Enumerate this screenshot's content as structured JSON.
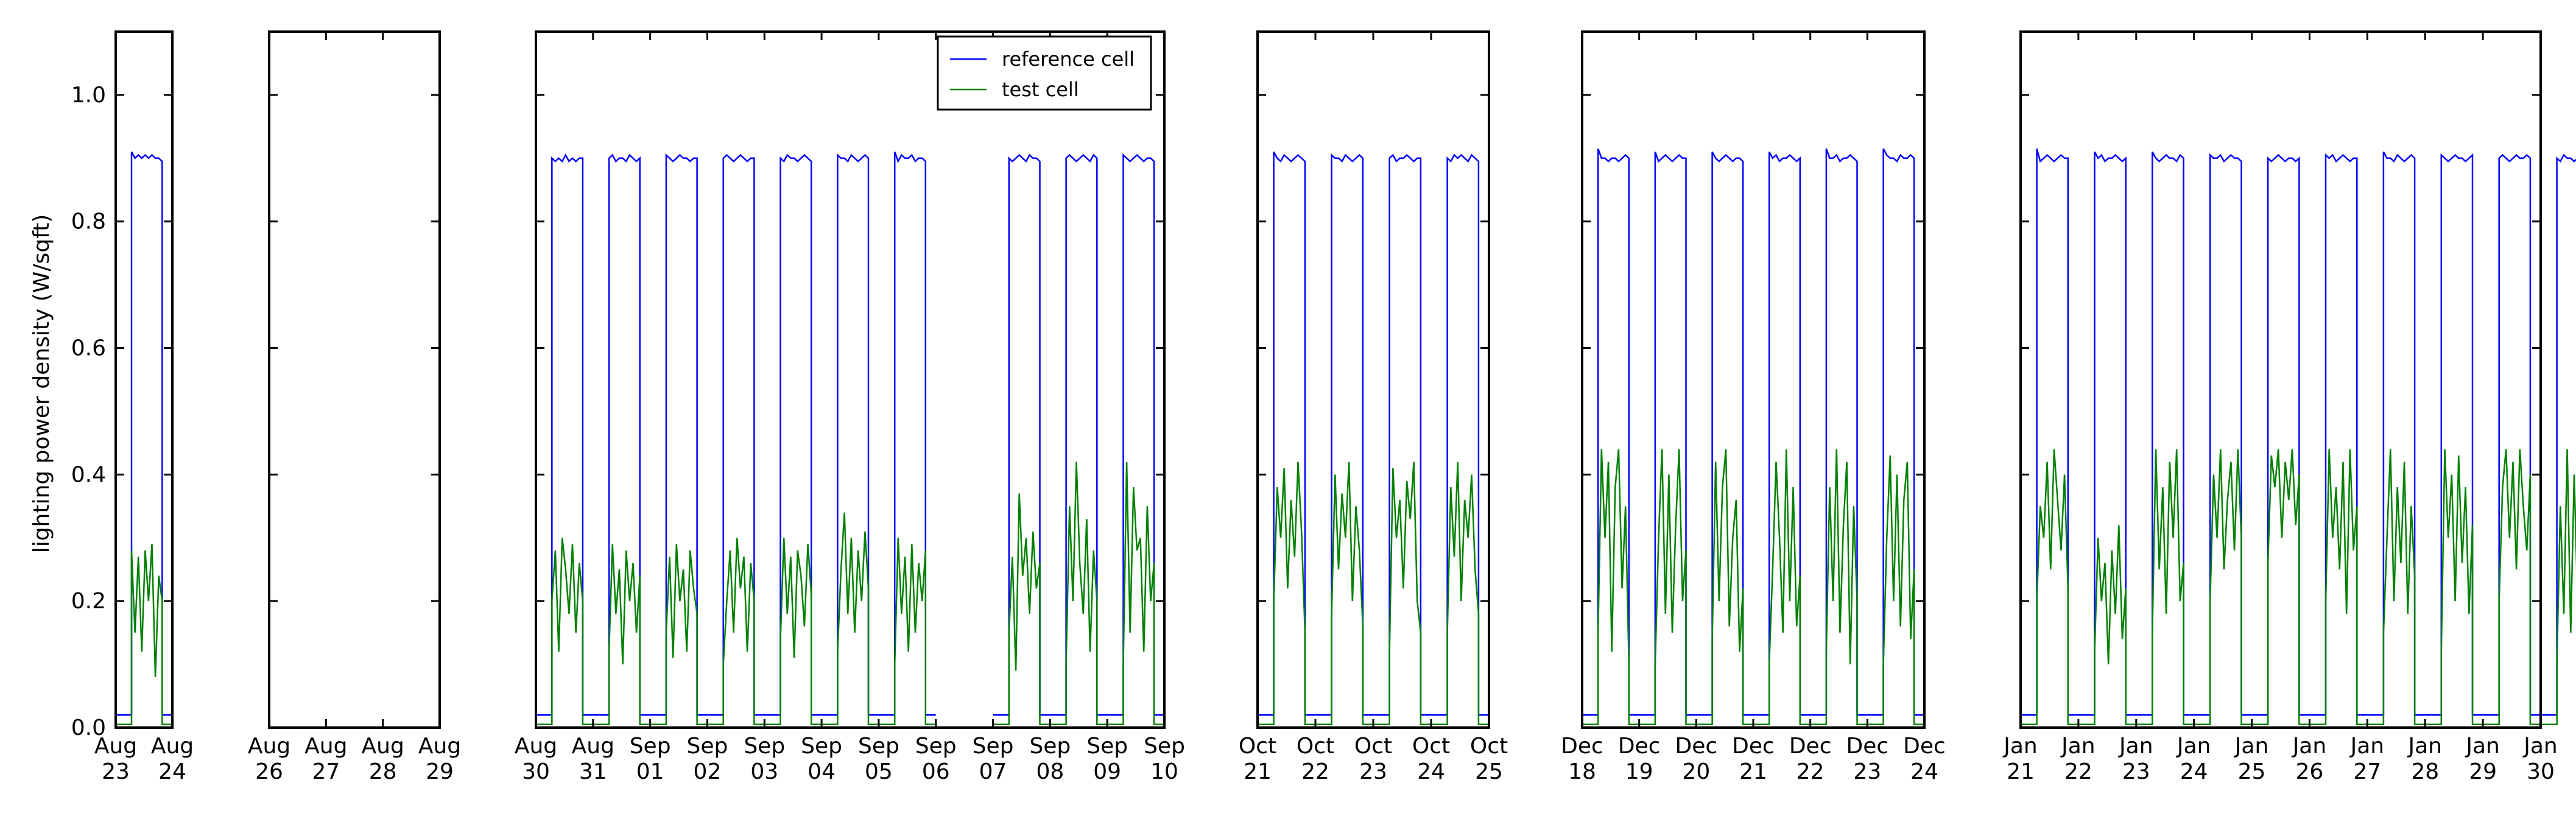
{
  "chart_data": {
    "type": "line",
    "title": "",
    "xlabel": "",
    "ylabel": "lighting power density (W/sqft)",
    "ylim": [
      0.0,
      1.1
    ],
    "yticks": [
      "0.0",
      "0.2",
      "0.4",
      "0.6",
      "0.8",
      "1.0"
    ],
    "grid": false,
    "legend_position": "top-right of third panel",
    "series": [
      {
        "name": "reference cell",
        "color": "#0000ff"
      },
      {
        "name": "test cell",
        "color": "#008000"
      }
    ],
    "reference_levels": {
      "day": 0.9,
      "night": 0.02
    },
    "panels": [
      {
        "x_ticks": [
          [
            "Aug",
            "23"
          ],
          [
            "Aug",
            "24"
          ]
        ],
        "days": [
          {
            "ref": [
              0.91,
              0.9,
              0.905,
              0.9,
              0.905,
              0.9,
              0.905,
              0.9,
              0.9,
              0.895
            ],
            "test": [
              0.28,
              0.15,
              0.27,
              0.12,
              0.28,
              0.2,
              0.29,
              0.08,
              0.24,
              0.2
            ]
          }
        ]
      },
      {
        "x_ticks": [
          [
            "Aug",
            "26"
          ],
          [
            "Aug",
            "27"
          ],
          [
            "Aug",
            "28"
          ],
          [
            "Aug",
            "29"
          ]
        ],
        "days": []
      },
      {
        "x_ticks": [
          [
            "Aug",
            "30"
          ],
          [
            "Aug",
            "31"
          ],
          [
            "Sep",
            "01"
          ],
          [
            "Sep",
            "02"
          ],
          [
            "Sep",
            "03"
          ],
          [
            "Sep",
            "04"
          ],
          [
            "Sep",
            "05"
          ],
          [
            "Sep",
            "06"
          ],
          [
            "Sep",
            "07"
          ],
          [
            "Sep",
            "08"
          ],
          [
            "Sep",
            "09"
          ],
          [
            "Sep",
            "10"
          ]
        ],
        "days": [
          {
            "ref": [
              0.9,
              0.895,
              0.9,
              0.895,
              0.905,
              0.895,
              0.9,
              0.895,
              0.9,
              0.9
            ],
            "test": [
              0.2,
              0.28,
              0.12,
              0.3,
              0.25,
              0.18,
              0.29,
              0.15,
              0.26,
              0.2
            ]
          },
          {
            "ref": [
              0.9,
              0.905,
              0.895,
              0.9,
              0.9,
              0.895,
              0.905,
              0.9,
              0.895,
              0.9
            ],
            "test": [
              0.12,
              0.29,
              0.18,
              0.25,
              0.1,
              0.28,
              0.2,
              0.26,
              0.15,
              0.24
            ]
          },
          {
            "ref": [
              0.905,
              0.9,
              0.895,
              0.9,
              0.905,
              0.9,
              0.9,
              0.895,
              0.9,
              0.9
            ],
            "test": [
              0.15,
              0.27,
              0.11,
              0.29,
              0.2,
              0.25,
              0.12,
              0.28,
              0.22,
              0.18
            ]
          },
          {
            "ref": [
              0.9,
              0.905,
              0.9,
              0.895,
              0.9,
              0.905,
              0.9,
              0.895,
              0.9,
              0.9
            ],
            "test": [
              0.1,
              0.2,
              0.28,
              0.15,
              0.3,
              0.22,
              0.27,
              0.12,
              0.26,
              0.2
            ]
          },
          {
            "ref": [
              0.9,
              0.895,
              0.905,
              0.9,
              0.9,
              0.895,
              0.9,
              0.905,
              0.9,
              0.895
            ],
            "test": [
              0.14,
              0.3,
              0.18,
              0.27,
              0.11,
              0.28,
              0.24,
              0.16,
              0.29,
              0.21
            ]
          },
          {
            "ref": [
              0.905,
              0.9,
              0.9,
              0.895,
              0.905,
              0.9,
              0.895,
              0.9,
              0.905,
              0.9
            ],
            "test": [
              0.12,
              0.25,
              0.34,
              0.18,
              0.3,
              0.15,
              0.28,
              0.2,
              0.31,
              0.22
            ]
          },
          {
            "ref": [
              0.91,
              0.895,
              0.905,
              0.9,
              0.9,
              0.905,
              0.895,
              0.9,
              0.9,
              0.895
            ],
            "test": [
              0.1,
              0.3,
              0.18,
              0.27,
              0.12,
              0.29,
              0.15,
              0.26,
              0.2,
              0.28
            ]
          },
          null,
          {
            "ref": [
              0.9,
              0.895,
              0.9,
              0.905,
              0.9,
              0.895,
              0.905,
              0.9,
              0.9,
              0.895
            ],
            "test": [
              0.15,
              0.27,
              0.09,
              0.37,
              0.24,
              0.3,
              0.18,
              0.31,
              0.22,
              0.26
            ]
          },
          {
            "ref": [
              0.9,
              0.905,
              0.9,
              0.895,
              0.9,
              0.905,
              0.9,
              0.895,
              0.905,
              0.9
            ],
            "test": [
              0.1,
              0.35,
              0.2,
              0.42,
              0.26,
              0.18,
              0.33,
              0.12,
              0.28,
              0.2
            ]
          },
          {
            "ref": [
              0.905,
              0.9,
              0.895,
              0.9,
              0.905,
              0.9,
              0.895,
              0.9,
              0.9,
              0.895
            ],
            "test": [
              0.1,
              0.42,
              0.15,
              0.38,
              0.28,
              0.3,
              0.12,
              0.35,
              0.2,
              0.26
            ]
          }
        ]
      },
      {
        "x_ticks": [
          [
            "Oct",
            "21"
          ],
          [
            "Oct",
            "22"
          ],
          [
            "Oct",
            "23"
          ],
          [
            "Oct",
            "24"
          ],
          [
            "Oct",
            "25"
          ]
        ],
        "days": [
          {
            "ref": [
              0.91,
              0.9,
              0.895,
              0.905,
              0.9,
              0.895,
              0.9,
              0.905,
              0.9,
              0.895
            ],
            "test": [
              0.2,
              0.38,
              0.3,
              0.41,
              0.22,
              0.36,
              0.27,
              0.42,
              0.31,
              0.15
            ]
          },
          {
            "ref": [
              0.905,
              0.9,
              0.9,
              0.895,
              0.905,
              0.9,
              0.895,
              0.9,
              0.905,
              0.9
            ],
            "test": [
              0.18,
              0.4,
              0.25,
              0.37,
              0.3,
              0.42,
              0.2,
              0.35,
              0.28,
              0.16
            ]
          },
          {
            "ref": [
              0.9,
              0.905,
              0.895,
              0.9,
              0.9,
              0.905,
              0.9,
              0.895,
              0.9,
              0.9
            ],
            "test": [
              0.12,
              0.41,
              0.3,
              0.36,
              0.22,
              0.39,
              0.33,
              0.42,
              0.2,
              0.15
            ]
          },
          {
            "ref": [
              0.9,
              0.895,
              0.905,
              0.9,
              0.905,
              0.9,
              0.895,
              0.905,
              0.9,
              0.895
            ],
            "test": [
              0.15,
              0.38,
              0.27,
              0.42,
              0.2,
              0.36,
              0.3,
              0.4,
              0.25,
              0.18
            ]
          }
        ]
      },
      {
        "x_ticks": [
          [
            "Dec",
            "18"
          ],
          [
            "Dec",
            "19"
          ],
          [
            "Dec",
            "20"
          ],
          [
            "Dec",
            "21"
          ],
          [
            "Dec",
            "22"
          ],
          [
            "Dec",
            "23"
          ],
          [
            "Dec",
            "24"
          ]
        ],
        "days": [
          {
            "ref": [
              0.915,
              0.9,
              0.9,
              0.895,
              0.9,
              0.9,
              0.895,
              0.9,
              0.905,
              0.9
            ],
            "test": [
              0.15,
              0.44,
              0.3,
              0.42,
              0.12,
              0.38,
              0.44,
              0.22,
              0.35,
              0.1
            ]
          },
          {
            "ref": [
              0.91,
              0.895,
              0.9,
              0.905,
              0.9,
              0.895,
              0.9,
              0.905,
              0.9,
              0.9
            ],
            "test": [
              0.1,
              0.3,
              0.44,
              0.18,
              0.4,
              0.15,
              0.32,
              0.44,
              0.2,
              0.28
            ]
          },
          {
            "ref": [
              0.91,
              0.9,
              0.895,
              0.9,
              0.905,
              0.9,
              0.895,
              0.9,
              0.9,
              0.895
            ],
            "test": [
              0.14,
              0.42,
              0.2,
              0.38,
              0.44,
              0.16,
              0.3,
              0.36,
              0.12,
              0.22
            ]
          },
          {
            "ref": [
              0.91,
              0.9,
              0.905,
              0.895,
              0.9,
              0.9,
              0.905,
              0.9,
              0.895,
              0.9
            ],
            "test": [
              0.1,
              0.25,
              0.42,
              0.3,
              0.15,
              0.44,
              0.2,
              0.38,
              0.16,
              0.24
            ]
          },
          {
            "ref": [
              0.915,
              0.9,
              0.9,
              0.905,
              0.895,
              0.9,
              0.9,
              0.905,
              0.9,
              0.895
            ],
            "test": [
              0.12,
              0.38,
              0.2,
              0.44,
              0.15,
              0.32,
              0.42,
              0.1,
              0.35,
              0.2
            ]
          },
          {
            "ref": [
              0.915,
              0.905,
              0.9,
              0.9,
              0.895,
              0.905,
              0.9,
              0.9,
              0.905,
              0.9
            ],
            "test": [
              0.1,
              0.3,
              0.43,
              0.2,
              0.4,
              0.16,
              0.36,
              0.42,
              0.14,
              0.25
            ]
          }
        ]
      },
      {
        "x_ticks": [
          [
            "Jan",
            "21"
          ],
          [
            "Jan",
            "22"
          ],
          [
            "Jan",
            "23"
          ],
          [
            "Jan",
            "24"
          ],
          [
            "Jan",
            "25"
          ],
          [
            "Jan",
            "26"
          ],
          [
            "Jan",
            "27"
          ],
          [
            "Jan",
            "28"
          ],
          [
            "Jan",
            "29"
          ],
          [
            "Jan",
            "30"
          ]
        ],
        "days": [
          {
            "ref": [
              0.915,
              0.895,
              0.9,
              0.905,
              0.9,
              0.895,
              0.9,
              0.905,
              0.9,
              0.9
            ],
            "test": [
              0.2,
              0.35,
              0.3,
              0.42,
              0.25,
              0.44,
              0.36,
              0.28,
              0.4,
              0.22
            ]
          },
          {
            "ref": [
              0.91,
              0.9,
              0.905,
              0.895,
              0.9,
              0.9,
              0.905,
              0.9,
              0.895,
              0.9
            ],
            "test": [
              0.12,
              0.3,
              0.2,
              0.26,
              0.1,
              0.28,
              0.18,
              0.32,
              0.14,
              0.22
            ]
          },
          {
            "ref": [
              0.91,
              0.9,
              0.895,
              0.9,
              0.905,
              0.9,
              0.9,
              0.895,
              0.905,
              0.9
            ],
            "test": [
              0.15,
              0.44,
              0.25,
              0.38,
              0.18,
              0.42,
              0.3,
              0.44,
              0.2,
              0.26
            ]
          },
          {
            "ref": [
              0.905,
              0.9,
              0.9,
              0.905,
              0.895,
              0.9,
              0.905,
              0.9,
              0.9,
              0.895
            ],
            "test": [
              0.2,
              0.4,
              0.3,
              0.44,
              0.25,
              0.36,
              0.42,
              0.28,
              0.44,
              0.3
            ]
          },
          {
            "ref": [
              0.9,
              0.895,
              0.9,
              0.905,
              0.9,
              0.895,
              0.9,
              0.9,
              0.895,
              0.9
            ],
            "test": [
              0.26,
              0.43,
              0.38,
              0.44,
              0.3,
              0.42,
              0.36,
              0.44,
              0.32,
              0.4
            ]
          },
          {
            "ref": [
              0.905,
              0.9,
              0.905,
              0.895,
              0.9,
              0.905,
              0.9,
              0.895,
              0.9,
              0.9
            ],
            "test": [
              0.2,
              0.44,
              0.3,
              0.38,
              0.25,
              0.42,
              0.18,
              0.44,
              0.28,
              0.35
            ]
          },
          {
            "ref": [
              0.91,
              0.9,
              0.9,
              0.895,
              0.905,
              0.9,
              0.895,
              0.9,
              0.905,
              0.9
            ],
            "test": [
              0.15,
              0.3,
              0.44,
              0.2,
              0.38,
              0.26,
              0.42,
              0.18,
              0.35,
              0.24
            ]
          },
          {
            "ref": [
              0.905,
              0.9,
              0.895,
              0.9,
              0.905,
              0.9,
              0.9,
              0.895,
              0.9,
              0.905
            ],
            "test": [
              0.12,
              0.44,
              0.3,
              0.4,
              0.2,
              0.43,
              0.26,
              0.38,
              0.18,
              0.32
            ]
          },
          {
            "ref": [
              0.9,
              0.905,
              0.9,
              0.895,
              0.9,
              0.905,
              0.9,
              0.9,
              0.905,
              0.9
            ],
            "test": [
              0.2,
              0.38,
              0.44,
              0.3,
              0.42,
              0.25,
              0.44,
              0.35,
              0.28,
              0.4
            ]
          },
          {
            "ref": [
              0.9,
              0.895,
              0.905,
              0.9,
              0.9,
              0.895,
              0.9,
              0.905,
              0.895,
              0.9
            ],
            "test": [
              0.1,
              0.35,
              0.18,
              0.44,
              0.15,
              0.4,
              0.2,
              0.38,
              0.12,
              0.3
            ]
          }
        ]
      }
    ]
  }
}
